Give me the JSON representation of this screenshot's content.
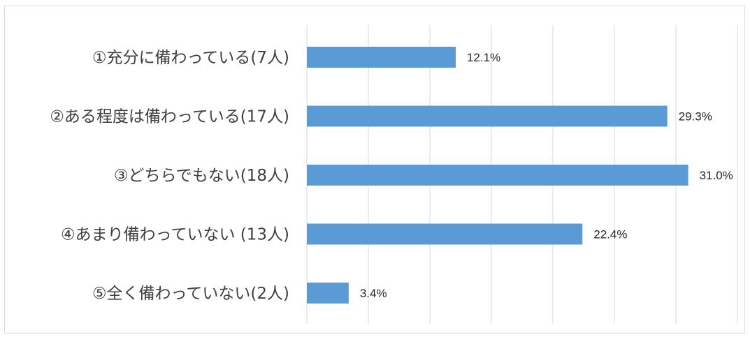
{
  "chart_data": {
    "type": "bar",
    "orientation": "horizontal",
    "categories": [
      "①充分に備わっている(7人)",
      "②ある程度は備わっている(17人)",
      "③どちらでもない(18人)",
      "④あまり備わっていない (13人)",
      "⑤全く備わっていない(2人)"
    ],
    "values": [
      12.1,
      29.3,
      31.0,
      22.4,
      3.4
    ],
    "data_labels": [
      "12.1%",
      "29.3%",
      "31.0%",
      "22.4%",
      "3.4%"
    ],
    "title": "",
    "xlabel": "",
    "ylabel": "",
    "xlim": [
      0,
      35
    ],
    "gridlines": true,
    "gridline_interval": 5,
    "legend": "none",
    "bar_color": "#5b9bd5",
    "gridline_color": "#d9d9d9"
  }
}
